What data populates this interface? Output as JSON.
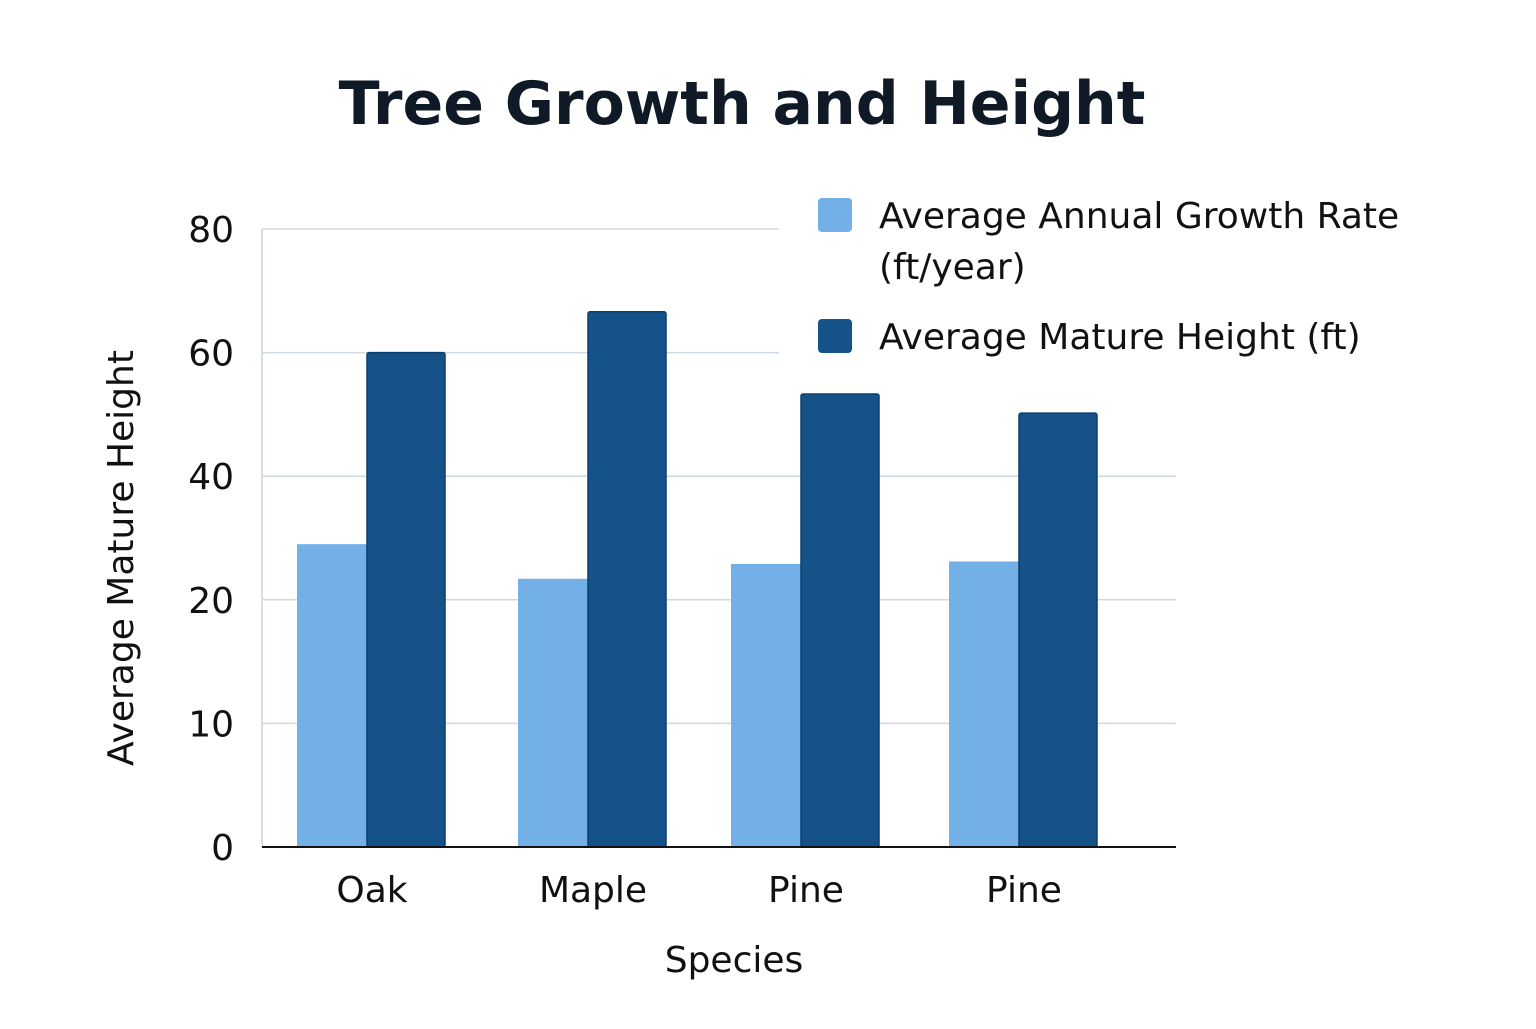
{
  "chart_data": {
    "type": "bar",
    "title": "Tree Growth and Height",
    "xlabel": "Species",
    "ylabel": "Average Mature Height",
    "categories": [
      "Oak",
      "Maple",
      "Pine",
      "Pine"
    ],
    "yticks": [
      0,
      10,
      20,
      40,
      60,
      80
    ],
    "ylim": [
      0,
      80
    ],
    "grid": true,
    "legend_position": "top-right",
    "series": [
      {
        "name": "Average Annual Growth Rate (ft/year)",
        "legend_lines": [
          "Average Annual Growth Rate",
          "(ft/year)"
        ],
        "color": "#74b0e8",
        "values": [
          29,
          23.4,
          25.8,
          26.2
        ]
      },
      {
        "name": "Average Mature Height (ft)",
        "legend_lines": [
          "Average Mature Height (ft)"
        ],
        "color": "#15528a",
        "values": [
          60,
          66.6,
          53.3,
          50.2
        ]
      }
    ]
  }
}
